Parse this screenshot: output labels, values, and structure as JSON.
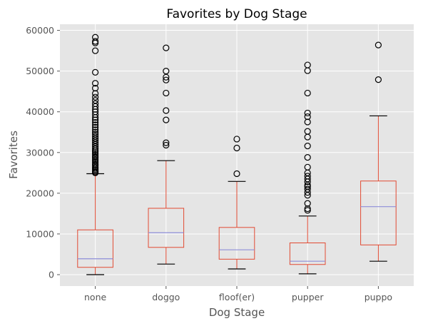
{
  "chart_data": {
    "type": "box",
    "title": "Favorites by Dog Stage",
    "xlabel": "Dog Stage",
    "ylabel": "Favorites",
    "ylim": [
      -2800,
      61500
    ],
    "yticks": [
      0,
      10000,
      20000,
      30000,
      40000,
      50000,
      60000
    ],
    "ytick_labels": [
      "0",
      "10000",
      "20000",
      "30000",
      "40000",
      "50000",
      "60000"
    ],
    "grid": true,
    "colors": {
      "background": "#e5e5e5",
      "grid": "#ffffff",
      "box": "#e24a33",
      "median": "#8e8ed8",
      "whisker_cap": "#000000",
      "flier": "#000000"
    },
    "categories": [
      "none",
      "doggo",
      "floof(er)",
      "pupper",
      "puppo"
    ],
    "boxes": [
      {
        "whislo": 0,
        "q1": 1800,
        "med": 3900,
        "q3": 11000,
        "whishi": 24800,
        "fliers": [
          25000,
          25200,
          25500,
          25800,
          26100,
          26400,
          26800,
          27100,
          27500,
          27900,
          28300,
          28700,
          29000,
          29400,
          29800,
          30200,
          30600,
          31000,
          31500,
          32000,
          32500,
          33000,
          33500,
          34000,
          34500,
          35000,
          35600,
          36200,
          36800,
          37400,
          38000,
          38600,
          39300,
          40000,
          40600,
          41300,
          42000,
          42800,
          43600,
          44500,
          45800,
          47000,
          49700,
          55000,
          56900,
          57300,
          58300
        ]
      },
      {
        "whislo": 2600,
        "q1": 6700,
        "med": 10300,
        "q3": 16300,
        "whishi": 28000,
        "fliers": [
          31800,
          32400,
          38000,
          40300,
          44600,
          47800,
          48500,
          50000,
          55700
        ]
      },
      {
        "whislo": 1400,
        "q1": 3800,
        "med": 6100,
        "q3": 11600,
        "whishi": 22900,
        "fliers": [
          24800,
          31100,
          33300
        ]
      },
      {
        "whislo": 200,
        "q1": 2500,
        "med": 3300,
        "q3": 7800,
        "whishi": 14400,
        "fliers": [
          15800,
          16200,
          17500,
          19500,
          20200,
          21000,
          21600,
          22000,
          22800,
          23500,
          24200,
          25000,
          26400,
          28800,
          31600,
          33800,
          35200,
          37500,
          38800,
          39700,
          44600,
          50100,
          51500
        ]
      },
      {
        "whislo": 3300,
        "q1": 7300,
        "med": 16700,
        "q3": 23000,
        "whishi": 39000,
        "fliers": [
          47900,
          56400
        ]
      }
    ]
  }
}
